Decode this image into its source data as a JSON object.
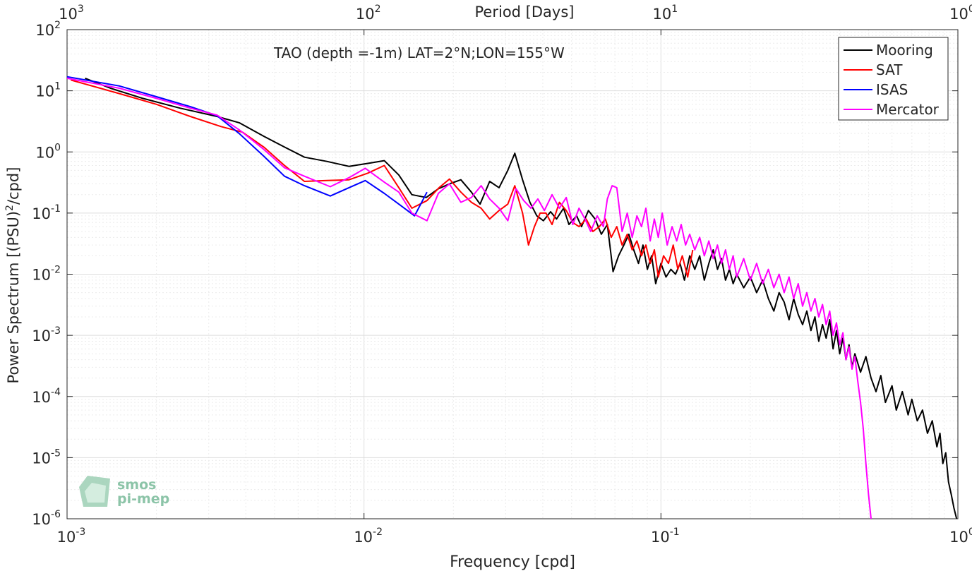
{
  "chart_data": {
    "type": "line",
    "title": "TAO (depth =-1m) LAT=2°N;LON=155°W",
    "xlabel": "Frequency [cpd]",
    "ylabel": "Power Spectrum [(PSU)",
    "ylabel_sup": "2",
    "ylabel_tail": "/cpd]",
    "top_xlabel": "Period [Days]",
    "xscale": "log",
    "yscale": "log",
    "xlim": [
      0.001,
      1
    ],
    "ylim": [
      1e-06,
      100
    ],
    "grid": true,
    "legend_position": "top-right",
    "x_ticks": [
      0.001,
      0.01,
      0.1,
      1
    ],
    "x_tick_labels": [
      [
        "10",
        "-3"
      ],
      [
        "10",
        "-2"
      ],
      [
        "10",
        "-1"
      ],
      [
        "10",
        "0"
      ]
    ],
    "top_tick_labels": [
      [
        "10",
        "3"
      ],
      [
        "10",
        "2"
      ],
      [
        "10",
        "1"
      ],
      [
        "10",
        "0"
      ]
    ],
    "y_ticks": [
      1e-06,
      1e-05,
      0.0001,
      0.001,
      0.01,
      0.1,
      1,
      10,
      100
    ],
    "y_tick_labels": [
      [
        "10",
        "-6"
      ],
      [
        "10",
        "-5"
      ],
      [
        "10",
        "-4"
      ],
      [
        "10",
        "-3"
      ],
      [
        "10",
        "-2"
      ],
      [
        "10",
        "-1"
      ],
      [
        "10",
        "0"
      ],
      [
        "10",
        "1"
      ],
      [
        "10",
        "2"
      ]
    ],
    "series": [
      {
        "name": "Mooring",
        "color": "#000000",
        "points": [
          [
            0.00115,
            16
          ],
          [
            0.0014,
            11
          ],
          [
            0.0018,
            7.5
          ],
          [
            0.0024,
            5.2
          ],
          [
            0.0032,
            3.8
          ],
          [
            0.0038,
            3.0
          ],
          [
            0.0046,
            1.8
          ],
          [
            0.0054,
            1.2
          ],
          [
            0.0063,
            0.82
          ],
          [
            0.0075,
            0.7
          ],
          [
            0.0089,
            0.58
          ],
          [
            0.0103,
            0.65
          ],
          [
            0.0117,
            0.72
          ],
          [
            0.0131,
            0.42
          ],
          [
            0.0145,
            0.2
          ],
          [
            0.0162,
            0.18
          ],
          [
            0.0178,
            0.25
          ],
          [
            0.0194,
            0.3
          ],
          [
            0.0212,
            0.35
          ],
          [
            0.023,
            0.22
          ],
          [
            0.0246,
            0.14
          ],
          [
            0.0265,
            0.33
          ],
          [
            0.0285,
            0.26
          ],
          [
            0.0305,
            0.5
          ],
          [
            0.0322,
            0.95
          ],
          [
            0.0342,
            0.35
          ],
          [
            0.0362,
            0.15
          ],
          [
            0.0382,
            0.09
          ],
          [
            0.0402,
            0.075
          ],
          [
            0.0425,
            0.105
          ],
          [
            0.0445,
            0.08
          ],
          [
            0.047,
            0.12
          ],
          [
            0.049,
            0.065
          ],
          [
            0.052,
            0.09
          ],
          [
            0.054,
            0.06
          ],
          [
            0.057,
            0.11
          ],
          [
            0.06,
            0.08
          ],
          [
            0.063,
            0.045
          ],
          [
            0.066,
            0.065
          ],
          [
            0.069,
            0.011
          ],
          [
            0.072,
            0.02
          ],
          [
            0.075,
            0.03
          ],
          [
            0.078,
            0.045
          ],
          [
            0.081,
            0.025
          ],
          [
            0.084,
            0.015
          ],
          [
            0.087,
            0.03
          ],
          [
            0.09,
            0.012
          ],
          [
            0.093,
            0.02
          ],
          [
            0.096,
            0.007
          ],
          [
            0.1,
            0.015
          ],
          [
            0.104,
            0.009
          ],
          [
            0.108,
            0.012
          ],
          [
            0.112,
            0.01
          ],
          [
            0.116,
            0.015
          ],
          [
            0.12,
            0.008
          ],
          [
            0.125,
            0.02
          ],
          [
            0.13,
            0.012
          ],
          [
            0.135,
            0.02
          ],
          [
            0.14,
            0.008
          ],
          [
            0.145,
            0.015
          ],
          [
            0.15,
            0.025
          ],
          [
            0.155,
            0.012
          ],
          [
            0.16,
            0.018
          ],
          [
            0.165,
            0.008
          ],
          [
            0.17,
            0.012
          ],
          [
            0.175,
            0.007
          ],
          [
            0.18,
            0.01
          ],
          [
            0.19,
            0.006
          ],
          [
            0.2,
            0.009
          ],
          [
            0.21,
            0.005
          ],
          [
            0.22,
            0.008
          ],
          [
            0.23,
            0.004
          ],
          [
            0.24,
            0.0025
          ],
          [
            0.25,
            0.005
          ],
          [
            0.26,
            0.0035
          ],
          [
            0.27,
            0.0018
          ],
          [
            0.28,
            0.004
          ],
          [
            0.29,
            0.0022
          ],
          [
            0.3,
            0.0015
          ],
          [
            0.31,
            0.0025
          ],
          [
            0.32,
            0.0012
          ],
          [
            0.33,
            0.002
          ],
          [
            0.34,
            0.0008
          ],
          [
            0.35,
            0.0015
          ],
          [
            0.36,
            0.0009
          ],
          [
            0.37,
            0.0018
          ],
          [
            0.38,
            0.0006
          ],
          [
            0.39,
            0.0012
          ],
          [
            0.4,
            0.0005
          ],
          [
            0.41,
            0.0009
          ],
          [
            0.42,
            0.0004
          ],
          [
            0.43,
            0.0007
          ],
          [
            0.44,
            0.0003
          ],
          [
            0.45,
            0.0005
          ],
          [
            0.47,
            0.00025
          ],
          [
            0.49,
            0.00045
          ],
          [
            0.51,
            0.0002
          ],
          [
            0.53,
            0.00012
          ],
          [
            0.55,
            0.00022
          ],
          [
            0.57,
            8e-05
          ],
          [
            0.6,
            0.00015
          ],
          [
            0.62,
            6e-05
          ],
          [
            0.65,
            0.00012
          ],
          [
            0.68,
            5e-05
          ],
          [
            0.7,
            9e-05
          ],
          [
            0.73,
            4e-05
          ],
          [
            0.76,
            6e-05
          ],
          [
            0.79,
            2.5e-05
          ],
          [
            0.82,
            4e-05
          ],
          [
            0.85,
            1.5e-05
          ],
          [
            0.87,
            2.5e-05
          ],
          [
            0.89,
            8e-06
          ],
          [
            0.91,
            1.2e-05
          ],
          [
            0.93,
            4e-06
          ],
          [
            0.95,
            2.5e-06
          ],
          [
            0.97,
            1.5e-06
          ],
          [
            0.99,
            1e-06
          ]
        ]
      },
      {
        "name": "SAT",
        "color": "#ff0000",
        "points": [
          [
            0.00103,
            15
          ],
          [
            0.0015,
            9
          ],
          [
            0.002,
            6
          ],
          [
            0.0026,
            3.8
          ],
          [
            0.0033,
            2.6
          ],
          [
            0.0039,
            2.1
          ],
          [
            0.0046,
            1.2
          ],
          [
            0.0054,
            0.6
          ],
          [
            0.0063,
            0.33
          ],
          [
            0.0075,
            0.34
          ],
          [
            0.0089,
            0.35
          ],
          [
            0.0103,
            0.45
          ],
          [
            0.0117,
            0.6
          ],
          [
            0.0131,
            0.26
          ],
          [
            0.0145,
            0.12
          ],
          [
            0.0163,
            0.16
          ],
          [
            0.0179,
            0.26
          ],
          [
            0.0194,
            0.36
          ],
          [
            0.0212,
            0.22
          ],
          [
            0.023,
            0.15
          ],
          [
            0.0248,
            0.12
          ],
          [
            0.0265,
            0.08
          ],
          [
            0.0285,
            0.11
          ],
          [
            0.0305,
            0.14
          ],
          [
            0.0322,
            0.28
          ],
          [
            0.0342,
            0.1
          ],
          [
            0.0358,
            0.03
          ],
          [
            0.0375,
            0.06
          ],
          [
            0.0392,
            0.1
          ],
          [
            0.041,
            0.1
          ],
          [
            0.043,
            0.065
          ],
          [
            0.0455,
            0.15
          ],
          [
            0.048,
            0.11
          ],
          [
            0.0505,
            0.07
          ],
          [
            0.053,
            0.06
          ],
          [
            0.056,
            0.08
          ],
          [
            0.059,
            0.05
          ],
          [
            0.062,
            0.06
          ],
          [
            0.065,
            0.08
          ],
          [
            0.068,
            0.04
          ],
          [
            0.071,
            0.06
          ],
          [
            0.074,
            0.03
          ],
          [
            0.077,
            0.045
          ],
          [
            0.08,
            0.025
          ],
          [
            0.083,
            0.035
          ],
          [
            0.086,
            0.02
          ],
          [
            0.089,
            0.03
          ],
          [
            0.092,
            0.015
          ],
          [
            0.095,
            0.025
          ],
          [
            0.098,
            0.009
          ],
          [
            0.102,
            0.02
          ],
          [
            0.106,
            0.015
          ],
          [
            0.11,
            0.03
          ],
          [
            0.114,
            0.012
          ],
          [
            0.118,
            0.02
          ],
          [
            0.123,
            0.009
          ],
          [
            0.128,
            0.025
          ]
        ]
      },
      {
        "name": "ISAS",
        "color": "#0000ff",
        "points": [
          [
            0.001,
            17
          ],
          [
            0.0015,
            12
          ],
          [
            0.002,
            8
          ],
          [
            0.0026,
            5.5
          ],
          [
            0.0032,
            3.9
          ],
          [
            0.0038,
            2.0
          ],
          [
            0.0046,
            0.85
          ],
          [
            0.0054,
            0.4
          ],
          [
            0.0063,
            0.28
          ],
          [
            0.0077,
            0.19
          ],
          [
            0.0089,
            0.26
          ],
          [
            0.0101,
            0.34
          ],
          [
            0.0117,
            0.21
          ],
          [
            0.0131,
            0.14
          ],
          [
            0.0148,
            0.09
          ],
          [
            0.0163,
            0.22
          ]
        ]
      },
      {
        "name": "Mercator",
        "color": "#ff00ff",
        "points": [
          [
            0.001,
            16
          ],
          [
            0.0015,
            11
          ],
          [
            0.002,
            7.5
          ],
          [
            0.0026,
            5.2
          ],
          [
            0.0032,
            4.0
          ],
          [
            0.0038,
            2.3
          ],
          [
            0.0046,
            1.1
          ],
          [
            0.0054,
            0.55
          ],
          [
            0.0063,
            0.4
          ],
          [
            0.0077,
            0.27
          ],
          [
            0.0089,
            0.38
          ],
          [
            0.0101,
            0.54
          ],
          [
            0.0117,
            0.32
          ],
          [
            0.0131,
            0.22
          ],
          [
            0.0145,
            0.1
          ],
          [
            0.0163,
            0.075
          ],
          [
            0.0178,
            0.21
          ],
          [
            0.0194,
            0.3
          ],
          [
            0.0212,
            0.15
          ],
          [
            0.023,
            0.18
          ],
          [
            0.0248,
            0.28
          ],
          [
            0.0265,
            0.17
          ],
          [
            0.0285,
            0.12
          ],
          [
            0.0305,
            0.075
          ],
          [
            0.0325,
            0.25
          ],
          [
            0.0345,
            0.16
          ],
          [
            0.0365,
            0.12
          ],
          [
            0.0385,
            0.17
          ],
          [
            0.0405,
            0.11
          ],
          [
            0.043,
            0.2
          ],
          [
            0.0455,
            0.12
          ],
          [
            0.048,
            0.18
          ],
          [
            0.0505,
            0.065
          ],
          [
            0.053,
            0.12
          ],
          [
            0.0555,
            0.08
          ],
          [
            0.058,
            0.05
          ],
          [
            0.061,
            0.09
          ],
          [
            0.064,
            0.06
          ],
          [
            0.066,
            0.17
          ],
          [
            0.0685,
            0.28
          ],
          [
            0.071,
            0.26
          ],
          [
            0.074,
            0.05
          ],
          [
            0.077,
            0.1
          ],
          [
            0.08,
            0.04
          ],
          [
            0.083,
            0.09
          ],
          [
            0.086,
            0.06
          ],
          [
            0.089,
            0.12
          ],
          [
            0.092,
            0.035
          ],
          [
            0.095,
            0.08
          ],
          [
            0.098,
            0.04
          ],
          [
            0.101,
            0.1
          ],
          [
            0.105,
            0.03
          ],
          [
            0.109,
            0.06
          ],
          [
            0.113,
            0.035
          ],
          [
            0.117,
            0.065
          ],
          [
            0.121,
            0.03
          ],
          [
            0.125,
            0.045
          ],
          [
            0.13,
            0.025
          ],
          [
            0.135,
            0.04
          ],
          [
            0.14,
            0.02
          ],
          [
            0.145,
            0.035
          ],
          [
            0.15,
            0.018
          ],
          [
            0.155,
            0.03
          ],
          [
            0.16,
            0.015
          ],
          [
            0.165,
            0.025
          ],
          [
            0.17,
            0.012
          ],
          [
            0.175,
            0.02
          ],
          [
            0.18,
            0.009
          ],
          [
            0.19,
            0.018
          ],
          [
            0.2,
            0.008
          ],
          [
            0.21,
            0.015
          ],
          [
            0.22,
            0.007
          ],
          [
            0.23,
            0.012
          ],
          [
            0.24,
            0.006
          ],
          [
            0.25,
            0.01
          ],
          [
            0.26,
            0.005
          ],
          [
            0.27,
            0.009
          ],
          [
            0.28,
            0.004
          ],
          [
            0.29,
            0.007
          ],
          [
            0.3,
            0.003
          ],
          [
            0.31,
            0.005
          ],
          [
            0.32,
            0.0025
          ],
          [
            0.33,
            0.004
          ],
          [
            0.34,
            0.002
          ],
          [
            0.35,
            0.0032
          ],
          [
            0.36,
            0.0015
          ],
          [
            0.37,
            0.0025
          ],
          [
            0.38,
            0.001
          ],
          [
            0.39,
            0.0016
          ],
          [
            0.4,
            0.0007
          ],
          [
            0.41,
            0.0011
          ],
          [
            0.42,
            0.0004
          ],
          [
            0.43,
            0.00065
          ],
          [
            0.44,
            0.00028
          ],
          [
            0.45,
            0.00045
          ],
          [
            0.46,
            0.00018
          ],
          [
            0.47,
            8e-05
          ],
          [
            0.48,
            3e-05
          ],
          [
            0.49,
            8e-06
          ],
          [
            0.5,
            2.5e-06
          ],
          [
            0.51,
            1e-06
          ]
        ]
      }
    ]
  },
  "logo": {
    "line1": "smos",
    "line2": "pi-mep"
  }
}
